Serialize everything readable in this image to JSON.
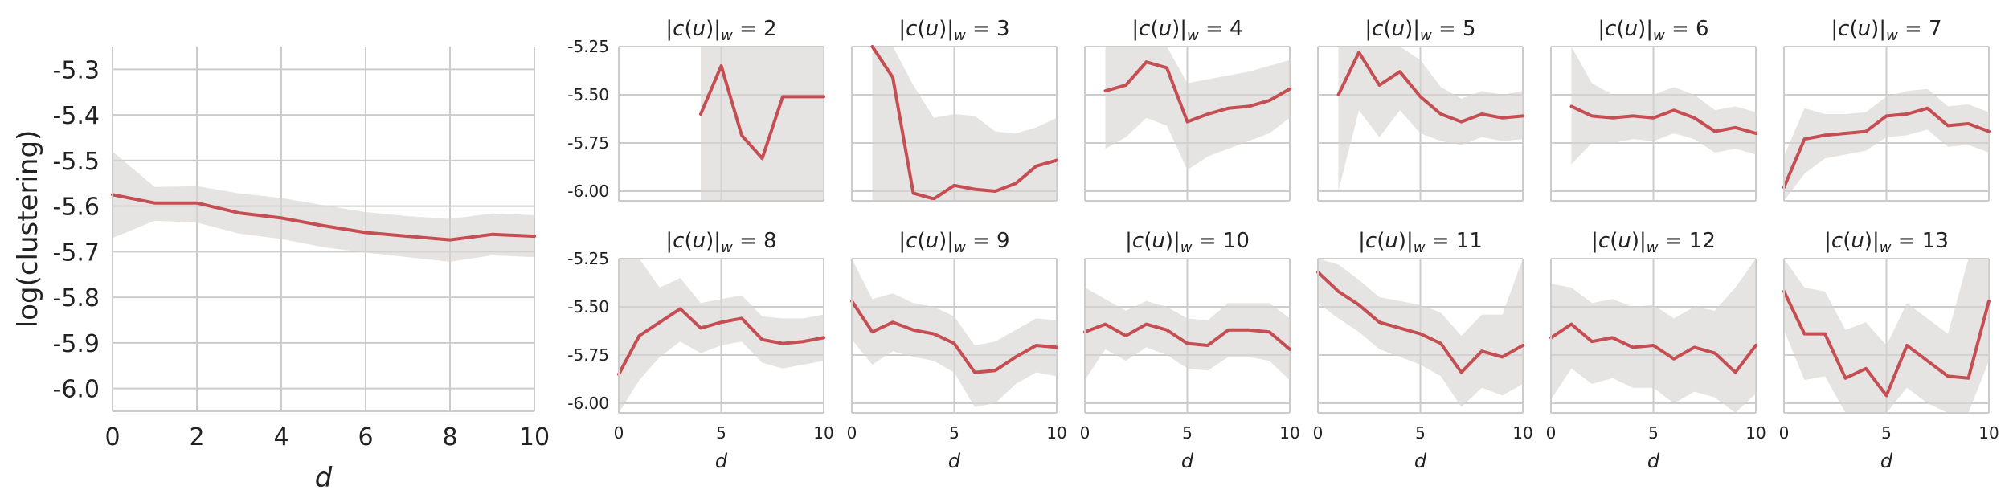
{
  "colors": {
    "line": "#c44e52",
    "band": "#d9d4d4",
    "grid": "#cccccc"
  },
  "chart_data": [
    {
      "id": "overall",
      "type": "line",
      "title": "",
      "xlabel": "d",
      "ylabel": "log(clustering)",
      "xlim": [
        0,
        10
      ],
      "ylim": [
        -6.05,
        -5.25
      ],
      "xticks": [
        0,
        2,
        4,
        6,
        8,
        10
      ],
      "yticks": [
        -5.3,
        -5.4,
        -5.5,
        -5.6,
        -5.7,
        -5.8,
        -5.9,
        -6.0
      ],
      "ytick_labels": [
        "-5.3",
        "-5.4",
        "-5.5",
        "-5.6",
        "-5.7",
        "-5.8",
        "-5.9",
        "-6.0"
      ],
      "grid": true,
      "x": [
        0,
        1,
        2,
        3,
        4,
        5,
        6,
        7,
        8,
        9,
        10
      ],
      "y": [
        -5.575,
        -5.593,
        -5.593,
        -5.615,
        -5.626,
        -5.643,
        -5.658,
        -5.666,
        -5.674,
        -5.662,
        -5.666
      ],
      "lower": [
        -5.67,
        -5.632,
        -5.636,
        -5.66,
        -5.672,
        -5.69,
        -5.702,
        -5.712,
        -5.722,
        -5.708,
        -5.712
      ],
      "upper": [
        -5.48,
        -5.558,
        -5.556,
        -5.572,
        -5.582,
        -5.598,
        -5.613,
        -5.622,
        -5.628,
        -5.616,
        -5.62
      ]
    },
    {
      "id": "w2",
      "type": "line",
      "title": "|c(u)|_w = 2",
      "xlabel": "",
      "ylabel": "",
      "xlim": [
        0,
        10
      ],
      "ylim": [
        -6.05,
        -5.25
      ],
      "x": [
        4,
        5,
        6,
        7,
        8,
        9,
        10
      ],
      "y": [
        -5.6,
        -5.35,
        -5.71,
        -5.83,
        -5.51,
        -5.51,
        -5.51
      ],
      "lower": [
        -6.05,
        -6.05,
        -6.05,
        -6.05,
        -6.05,
        -6.05,
        -6.05
      ],
      "upper": [
        -5.25,
        -5.25,
        -5.25,
        -5.25,
        -5.25,
        -5.25,
        -5.25
      ]
    },
    {
      "id": "w3",
      "type": "line",
      "title": "|c(u)|_w = 3",
      "xlabel": "",
      "ylabel": "",
      "xlim": [
        0,
        10
      ],
      "ylim": [
        -6.05,
        -5.25
      ],
      "x": [
        1,
        2,
        3,
        4,
        5,
        6,
        7,
        8,
        9,
        10
      ],
      "y": [
        -5.25,
        -5.41,
        -6.01,
        -6.04,
        -5.97,
        -5.99,
        -6.0,
        -5.96,
        -5.87,
        -5.84
      ],
      "lower": [
        -6.05,
        -6.05,
        -6.05,
        -6.05,
        -6.05,
        -6.05,
        -6.05,
        -6.05,
        -6.05,
        -6.05
      ],
      "upper": [
        -5.25,
        -5.25,
        -5.45,
        -5.62,
        -5.6,
        -5.61,
        -5.69,
        -5.7,
        -5.67,
        -5.62
      ]
    },
    {
      "id": "w4",
      "type": "line",
      "title": "|c(u)|_w = 4",
      "xlabel": "",
      "ylabel": "",
      "xlim": [
        0,
        10
      ],
      "ylim": [
        -6.05,
        -5.25
      ],
      "x": [
        1,
        2,
        3,
        4,
        5,
        6,
        7,
        8,
        9,
        10
      ],
      "y": [
        -5.48,
        -5.45,
        -5.33,
        -5.36,
        -5.64,
        -5.6,
        -5.57,
        -5.56,
        -5.53,
        -5.47
      ],
      "lower": [
        -5.78,
        -5.72,
        -5.62,
        -5.66,
        -5.89,
        -5.82,
        -5.78,
        -5.74,
        -5.7,
        -5.62
      ],
      "upper": [
        -5.25,
        -5.25,
        -5.25,
        -5.25,
        -5.44,
        -5.42,
        -5.4,
        -5.38,
        -5.35,
        -5.32
      ]
    },
    {
      "id": "w5",
      "type": "line",
      "title": "|c(u)|_w = 5",
      "xlabel": "",
      "ylabel": "",
      "xlim": [
        0,
        10
      ],
      "ylim": [
        -6.05,
        -5.25
      ],
      "x": [
        1,
        2,
        3,
        4,
        5,
        6,
        7,
        8,
        9,
        10
      ],
      "y": [
        -5.5,
        -5.28,
        -5.45,
        -5.38,
        -5.51,
        -5.6,
        -5.64,
        -5.6,
        -5.62,
        -5.61
      ],
      "lower": [
        -6.0,
        -5.58,
        -5.72,
        -5.58,
        -5.7,
        -5.74,
        -5.76,
        -5.72,
        -5.74,
        -5.73
      ],
      "upper": [
        -5.25,
        -5.25,
        -5.25,
        -5.25,
        -5.32,
        -5.46,
        -5.52,
        -5.48,
        -5.5,
        -5.48
      ]
    },
    {
      "id": "w6",
      "type": "line",
      "title": "|c(u)|_w = 6",
      "xlabel": "",
      "ylabel": "",
      "xlim": [
        0,
        10
      ],
      "ylim": [
        -6.05,
        -5.25
      ],
      "x": [
        1,
        2,
        3,
        4,
        5,
        6,
        7,
        8,
        9,
        10
      ],
      "y": [
        -5.56,
        -5.61,
        -5.62,
        -5.61,
        -5.62,
        -5.58,
        -5.62,
        -5.69,
        -5.67,
        -5.7
      ],
      "lower": [
        -5.86,
        -5.75,
        -5.75,
        -5.73,
        -5.74,
        -5.7,
        -5.73,
        -5.8,
        -5.78,
        -5.81
      ],
      "upper": [
        -5.25,
        -5.44,
        -5.5,
        -5.5,
        -5.5,
        -5.46,
        -5.5,
        -5.58,
        -5.56,
        -5.59
      ]
    },
    {
      "id": "w7",
      "type": "line",
      "title": "|c(u)|_w = 7",
      "xlabel": "",
      "ylabel": "",
      "xlim": [
        0,
        10
      ],
      "ylim": [
        -6.05,
        -5.25
      ],
      "x": [
        0,
        1,
        2,
        3,
        4,
        5,
        6,
        7,
        8,
        9,
        10
      ],
      "y": [
        -5.98,
        -5.73,
        -5.71,
        -5.7,
        -5.69,
        -5.61,
        -5.6,
        -5.57,
        -5.66,
        -5.65,
        -5.69
      ],
      "lower": [
        -6.05,
        -5.91,
        -5.83,
        -5.81,
        -5.79,
        -5.72,
        -5.71,
        -5.68,
        -5.77,
        -5.76,
        -5.8
      ],
      "upper": [
        -5.82,
        -5.57,
        -5.6,
        -5.6,
        -5.59,
        -5.51,
        -5.48,
        -5.47,
        -5.56,
        -5.55,
        -5.59
      ]
    },
    {
      "id": "w8",
      "type": "line",
      "title": "|c(u)|_w = 8",
      "xlabel": "",
      "ylabel": "",
      "xlim": [
        0,
        10
      ],
      "ylim": [
        -6.05,
        -5.25
      ],
      "x": [
        0,
        1,
        2,
        3,
        4,
        5,
        6,
        7,
        8,
        9,
        10
      ],
      "y": [
        -5.85,
        -5.65,
        -5.58,
        -5.51,
        -5.61,
        -5.58,
        -5.56,
        -5.67,
        -5.69,
        -5.68,
        -5.66
      ],
      "lower": [
        -6.05,
        -5.88,
        -5.76,
        -5.68,
        -5.74,
        -5.7,
        -5.68,
        -5.79,
        -5.82,
        -5.8,
        -5.78
      ],
      "upper": [
        -5.25,
        -5.25,
        -5.4,
        -5.35,
        -5.48,
        -5.46,
        -5.44,
        -5.55,
        -5.56,
        -5.56,
        -5.54
      ]
    },
    {
      "id": "w9",
      "type": "line",
      "title": "|c(u)|_w = 9",
      "xlabel": "",
      "ylabel": "",
      "xlim": [
        0,
        10
      ],
      "ylim": [
        -6.05,
        -5.25
      ],
      "x": [
        0,
        1,
        2,
        3,
        4,
        5,
        6,
        7,
        8,
        9,
        10
      ],
      "y": [
        -5.47,
        -5.63,
        -5.58,
        -5.62,
        -5.64,
        -5.69,
        -5.84,
        -5.83,
        -5.76,
        -5.7,
        -5.71
      ],
      "lower": [
        -5.67,
        -5.8,
        -5.73,
        -5.76,
        -5.78,
        -5.84,
        -6.02,
        -6.0,
        -5.9,
        -5.84,
        -5.86
      ],
      "upper": [
        -5.25,
        -5.46,
        -5.43,
        -5.48,
        -5.5,
        -5.55,
        -5.7,
        -5.68,
        -5.62,
        -5.56,
        -5.57
      ]
    },
    {
      "id": "w10",
      "type": "line",
      "title": "|c(u)|_w = 10",
      "xlabel": "",
      "ylabel": "",
      "xlim": [
        0,
        10
      ],
      "ylim": [
        -6.05,
        -5.25
      ],
      "x": [
        0,
        1,
        2,
        3,
        4,
        5,
        6,
        7,
        8,
        9,
        10
      ],
      "y": [
        -5.63,
        -5.59,
        -5.65,
        -5.59,
        -5.62,
        -5.69,
        -5.7,
        -5.62,
        -5.62,
        -5.63,
        -5.72
      ],
      "lower": [
        -5.88,
        -5.72,
        -5.78,
        -5.71,
        -5.75,
        -5.82,
        -5.83,
        -5.76,
        -5.76,
        -5.78,
        -5.88
      ],
      "upper": [
        -5.4,
        -5.46,
        -5.52,
        -5.47,
        -5.5,
        -5.56,
        -5.57,
        -5.48,
        -5.48,
        -5.48,
        -5.56
      ]
    },
    {
      "id": "w11",
      "type": "line",
      "title": "|c(u)|_w = 11",
      "xlabel": "",
      "ylabel": "",
      "xlim": [
        0,
        10
      ],
      "ylim": [
        -6.05,
        -5.25
      ],
      "x": [
        0,
        1,
        2,
        3,
        4,
        5,
        6,
        7,
        8,
        9,
        10
      ],
      "y": [
        -5.32,
        -5.42,
        -5.49,
        -5.58,
        -5.61,
        -5.64,
        -5.69,
        -5.84,
        -5.73,
        -5.76,
        -5.7
      ],
      "lower": [
        -5.48,
        -5.56,
        -5.63,
        -5.72,
        -5.76,
        -5.8,
        -5.86,
        -6.02,
        -5.92,
        -5.96,
        -5.9
      ],
      "upper": [
        -5.25,
        -5.28,
        -5.36,
        -5.45,
        -5.47,
        -5.49,
        -5.53,
        -5.65,
        -5.54,
        -5.54,
        -5.25
      ]
    },
    {
      "id": "w12",
      "type": "line",
      "title": "|c(u)|_w = 12",
      "xlabel": "",
      "ylabel": "",
      "xlim": [
        0,
        10
      ],
      "ylim": [
        -6.05,
        -5.25
      ],
      "x": [
        0,
        1,
        2,
        3,
        4,
        5,
        6,
        7,
        8,
        9,
        10
      ],
      "y": [
        -5.66,
        -5.59,
        -5.68,
        -5.66,
        -5.71,
        -5.7,
        -5.77,
        -5.71,
        -5.74,
        -5.84,
        -5.7
      ],
      "lower": [
        -5.98,
        -5.82,
        -5.9,
        -5.87,
        -5.92,
        -5.92,
        -6.0,
        -5.94,
        -5.97,
        -6.05,
        -5.95
      ],
      "upper": [
        -5.38,
        -5.4,
        -5.48,
        -5.46,
        -5.5,
        -5.49,
        -5.56,
        -5.5,
        -5.52,
        -5.4,
        -5.25
      ]
    },
    {
      "id": "w13",
      "type": "line",
      "title": "|c(u)|_w = 13",
      "xlabel": "",
      "ylabel": "",
      "xlim": [
        0,
        10
      ],
      "ylim": [
        -6.05,
        -5.25
      ],
      "x": [
        0,
        1,
        2,
        3,
        4,
        5,
        6,
        7,
        8,
        9,
        10
      ],
      "y": [
        -5.42,
        -5.64,
        -5.64,
        -5.87,
        -5.82,
        -5.96,
        -5.7,
        -5.78,
        -5.86,
        -5.87,
        -5.47
      ],
      "lower": [
        -5.62,
        -5.88,
        -5.86,
        -6.05,
        -6.05,
        -6.05,
        -5.92,
        -6.0,
        -6.05,
        -6.05,
        -5.78
      ],
      "upper": [
        -5.25,
        -5.4,
        -5.42,
        -5.62,
        -5.58,
        -5.7,
        -5.48,
        -5.56,
        -5.64,
        -5.25,
        -5.25
      ]
    }
  ],
  "small_axes": {
    "xticks": [
      0,
      5,
      10
    ],
    "xtick_labels": [
      "0",
      "5",
      "10"
    ],
    "yticks": [
      -5.25,
      -5.5,
      -5.75,
      -6.0
    ],
    "ytick_labels": [
      "-5.25",
      "-5.50",
      "-5.75",
      "-6.00"
    ],
    "xlabel": "d"
  }
}
